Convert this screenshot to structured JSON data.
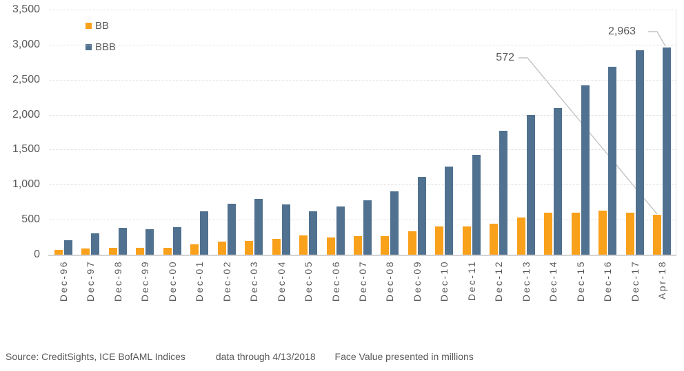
{
  "chart_data": {
    "type": "bar",
    "title": "",
    "xlabel": "",
    "ylabel": "",
    "categories": [
      "Dec-96",
      "Dec-97",
      "Dec-98",
      "Dec-99",
      "Dec-00",
      "Dec-01",
      "Dec-02",
      "Dec-03",
      "Dec-04",
      "Dec-05",
      "Dec-06",
      "Dec-07",
      "Dec-08",
      "Dec-09",
      "Dec-10",
      "Dec-11",
      "Dec-12",
      "Dec-13",
      "Dec-14",
      "Dec-15",
      "Dec-16",
      "Dec-17",
      "Apr-18"
    ],
    "series": [
      {
        "name": "BB",
        "color": "#F9A11B",
        "values": [
          70,
          90,
          95,
          95,
          100,
          150,
          190,
          195,
          225,
          280,
          245,
          265,
          265,
          330,
          400,
          400,
          440,
          535,
          600,
          595,
          630,
          600,
          572
        ]
      },
      {
        "name": "BBB",
        "color": "#50718F",
        "values": [
          210,
          300,
          385,
          360,
          395,
          620,
          730,
          795,
          720,
          615,
          690,
          780,
          900,
          1110,
          1255,
          1430,
          1770,
          2000,
          2090,
          2420,
          2680,
          2920,
          2963
        ]
      }
    ],
    "ylim": [
      0,
      3500
    ],
    "ytick_interval": 500,
    "ytick_labels": [
      "0",
      "500",
      "1,000",
      "1,500",
      "2,000",
      "2,500",
      "3,000",
      "3,500"
    ],
    "grid": "horizontal-dotted",
    "legend_position": "inside-top-left",
    "annotations": [
      {
        "label": "572",
        "series": "BB",
        "category": "Apr-18",
        "value": 572
      },
      {
        "label": "2,963",
        "series": "BBB",
        "category": "Apr-18",
        "value": 2963
      }
    ]
  },
  "footer": {
    "source": "Source: CreditSights, ICE BofAML Indices",
    "data_through": "data through 4/13/2018",
    "note": "Face Value presented in millions"
  },
  "colors": {
    "bb_bar": "#F9A11B",
    "bbb_bar": "#50718F",
    "axis_text": "#595959",
    "gridline": "#D9D9D9",
    "leader_line": "#C4C4C4"
  }
}
